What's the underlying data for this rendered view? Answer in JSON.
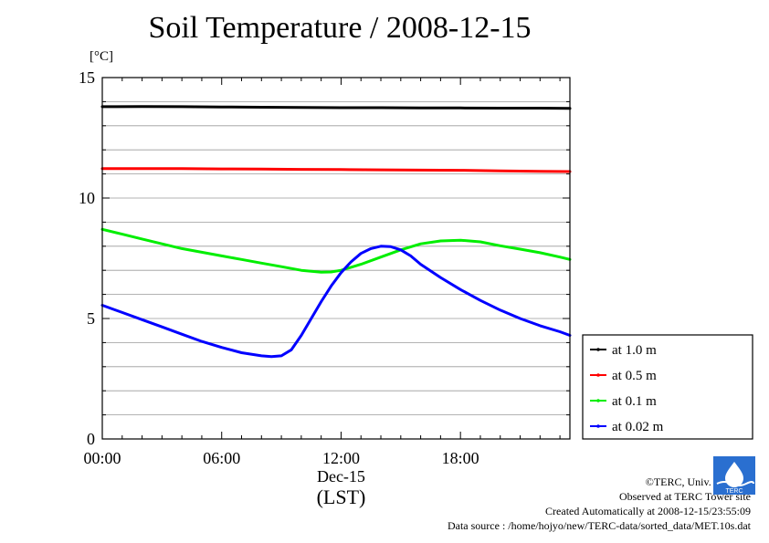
{
  "title": "Soil Temperature / 2008-12-15",
  "unit": "[°C]",
  "credits": {
    "copyright": "©TERC, Univ. Tsukuba",
    "site": "Observed at TERC Tower site",
    "created": "Created Automatically at 2008-12-15/23:55:09",
    "source": "Data source : /home/hojyo/new/TERC-data/sorted_data/MET.10s.dat"
  },
  "logo_text": "TERC",
  "chart_data": {
    "type": "line",
    "title": "Soil Temperature / 2008-12-15",
    "xlabel": "(LST)",
    "ylabel": "[°C]",
    "xlim": [
      0,
      23.5
    ],
    "ylim": [
      0,
      15
    ],
    "x_ticks": [
      {
        "value": 0,
        "label": "00:00"
      },
      {
        "value": 6,
        "label": "06:00"
      },
      {
        "value": 12,
        "label": "12:00"
      },
      {
        "value": 18,
        "label": "18:00"
      }
    ],
    "x_sublabel": "Dec-15",
    "y_ticks": [
      {
        "value": 0,
        "label": "0"
      },
      {
        "value": 5,
        "label": "5"
      },
      {
        "value": 10,
        "label": "10"
      },
      {
        "value": 15,
        "label": "15"
      }
    ],
    "grid": true,
    "legend_position": "right-bottom",
    "series": [
      {
        "name": "at 1.0 m",
        "color": "#000000",
        "x": [
          0,
          2,
          4,
          6,
          8,
          10,
          12,
          14,
          16,
          18,
          20,
          22,
          23.5
        ],
        "values": [
          13.79,
          13.8,
          13.79,
          13.78,
          13.77,
          13.76,
          13.75,
          13.75,
          13.74,
          13.74,
          13.73,
          13.73,
          13.72
        ]
      },
      {
        "name": "at 0.5 m",
        "color": "#ff0000",
        "x": [
          0,
          2,
          4,
          6,
          8,
          10,
          12,
          14,
          16,
          18,
          20,
          22,
          23.5
        ],
        "values": [
          11.22,
          11.22,
          11.22,
          11.21,
          11.2,
          11.19,
          11.18,
          11.17,
          11.16,
          11.15,
          11.13,
          11.11,
          11.1
        ]
      },
      {
        "name": "at 0.1 m",
        "color": "#00ee00",
        "x": [
          0,
          1,
          2,
          3,
          4,
          5,
          6,
          7,
          8,
          9,
          10,
          11,
          11.5,
          12,
          13,
          14,
          15,
          16,
          17,
          18,
          19,
          20,
          21,
          22,
          23,
          23.5
        ],
        "values": [
          8.7,
          8.5,
          8.3,
          8.1,
          7.9,
          7.75,
          7.6,
          7.45,
          7.3,
          7.15,
          7.0,
          6.92,
          6.93,
          7.0,
          7.25,
          7.55,
          7.85,
          8.1,
          8.22,
          8.25,
          8.18,
          8.02,
          7.88,
          7.73,
          7.55,
          7.45
        ]
      },
      {
        "name": "at 0.02 m",
        "color": "#0000ff",
        "x": [
          0,
          1,
          2,
          3,
          4,
          5,
          6,
          7,
          8,
          8.5,
          9,
          9.5,
          10,
          10.5,
          11,
          11.5,
          12,
          12.5,
          13,
          13.5,
          14,
          14.5,
          15,
          15.5,
          16,
          17,
          18,
          19,
          20,
          21,
          22,
          23,
          23.5
        ],
        "values": [
          5.55,
          5.25,
          4.95,
          4.65,
          4.35,
          4.05,
          3.8,
          3.58,
          3.45,
          3.42,
          3.45,
          3.7,
          4.3,
          5.0,
          5.7,
          6.35,
          6.9,
          7.35,
          7.7,
          7.9,
          8.0,
          7.98,
          7.85,
          7.6,
          7.25,
          6.7,
          6.2,
          5.75,
          5.35,
          5.0,
          4.7,
          4.45,
          4.3
        ]
      }
    ]
  }
}
